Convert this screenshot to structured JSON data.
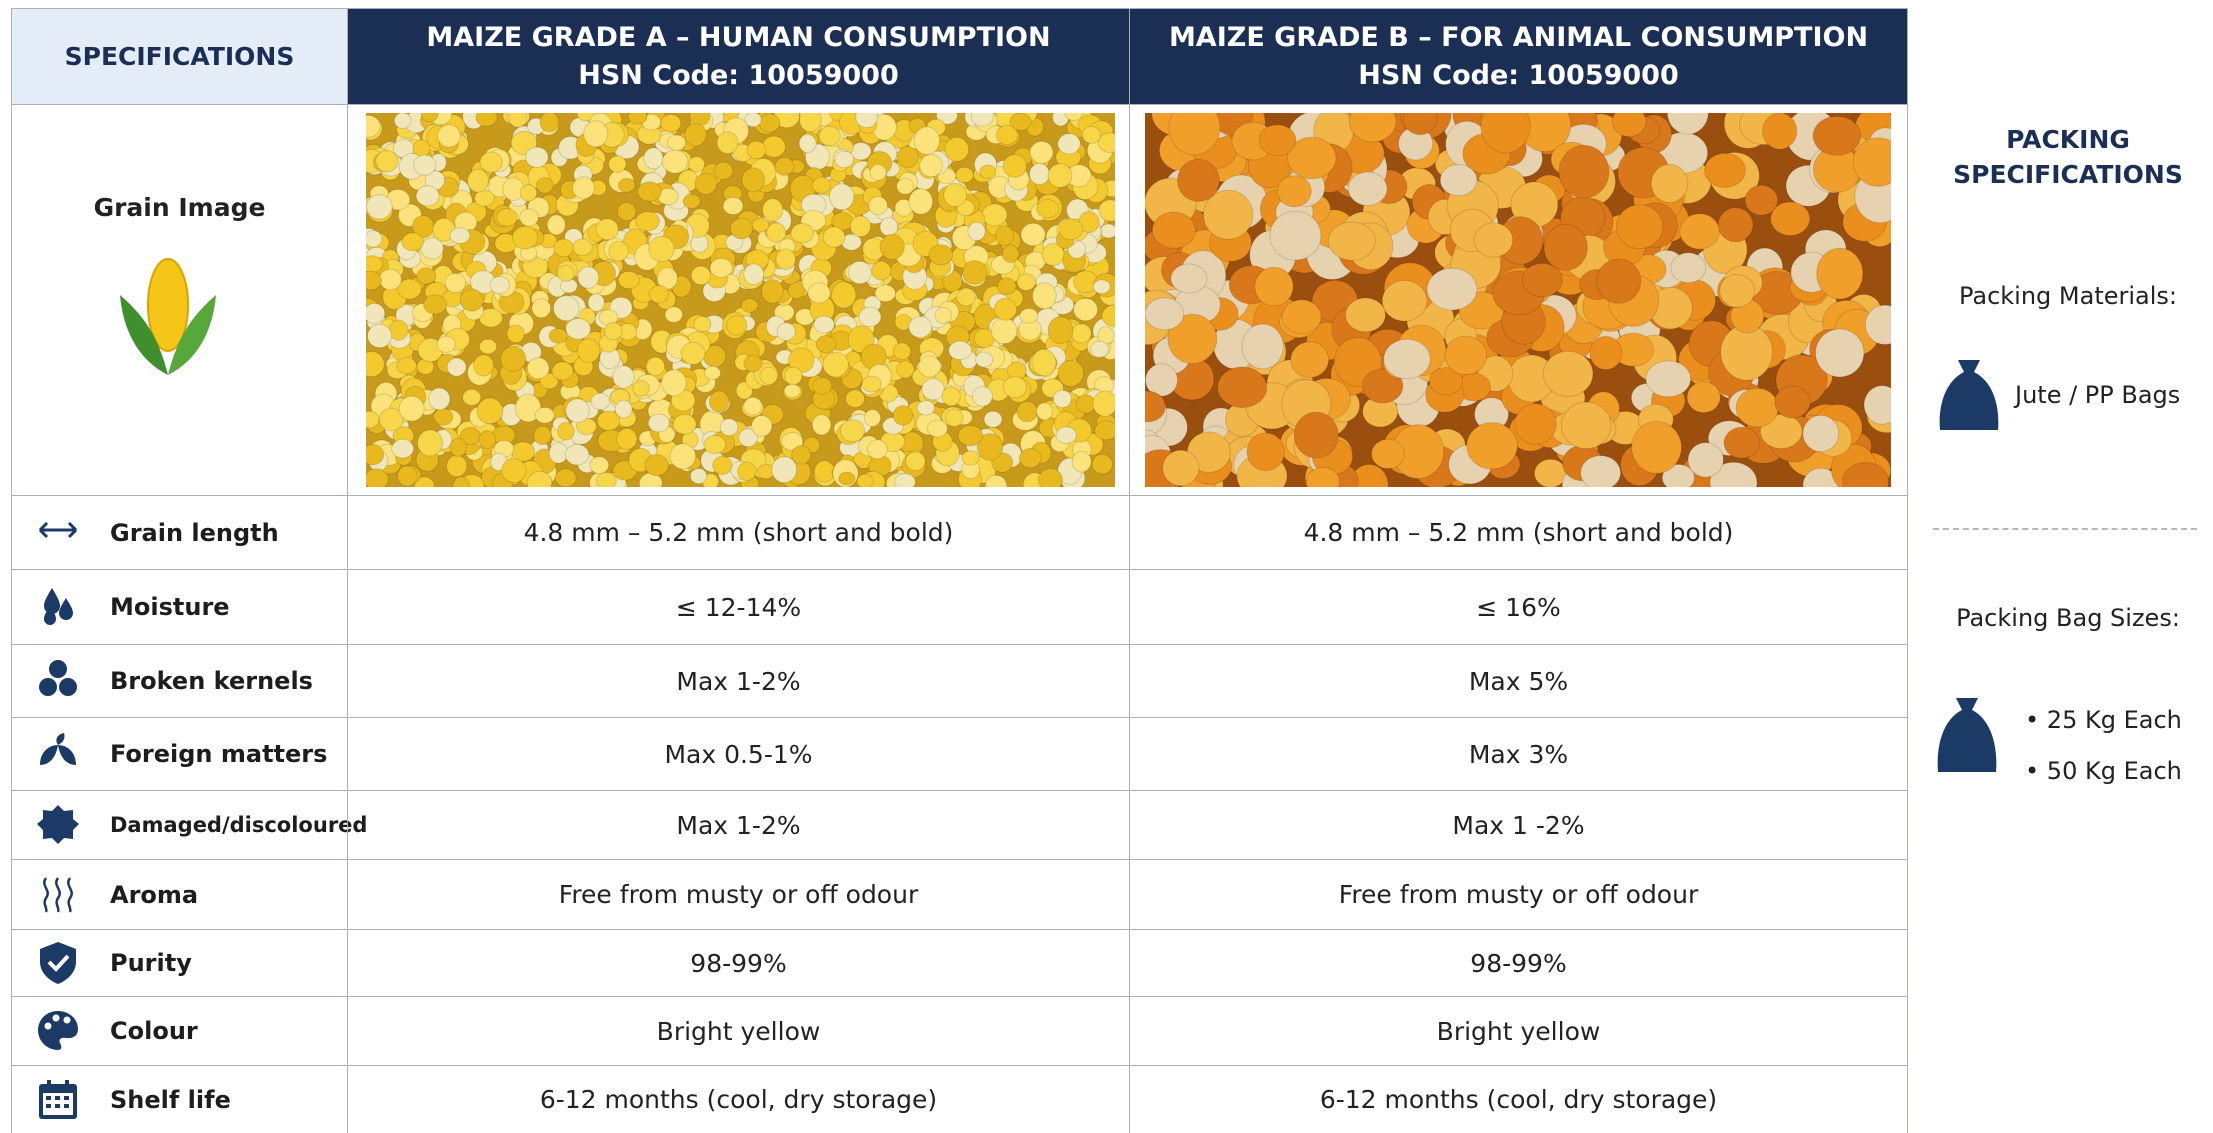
{
  "header": {
    "spec_label": "SPECIFICATIONS",
    "columns": [
      {
        "title": "MAIZE GRADE A – HUMAN CONSUMPTION",
        "hsn": "HSN Code: 10059000"
      },
      {
        "title": "MAIZE GRADE B – FOR ANIMAL CONSUMPTION",
        "hsn": "HSN Code: 10059000"
      }
    ]
  },
  "image_row_label": "Grain Image",
  "rows": [
    {
      "label": "Grain length",
      "values": [
        "4.8 mm – 5.2 mm (short and bold)",
        "4.8 mm – 5.2 mm (short and bold)"
      ]
    },
    {
      "label": "Moisture",
      "values": [
        "≤ 12-14%",
        "≤ 16%"
      ]
    },
    {
      "label": "Broken kernels",
      "values": [
        "Max 1-2%",
        "Max 5%"
      ]
    },
    {
      "label": "Foreign matters",
      "values": [
        "Max 0.5-1%",
        "Max 3%"
      ]
    },
    {
      "label": "Damaged/discoloured",
      "values": [
        "Max 1-2%",
        "Max 1 -2%"
      ]
    },
    {
      "label": "Aroma",
      "values": [
        "Free from musty or off odour",
        "Free from musty or off odour"
      ]
    },
    {
      "label": "Purity",
      "values": [
        "98-99%",
        "98-99%"
      ]
    },
    {
      "label": "Colour",
      "values": [
        "Bright yellow",
        "Bright yellow"
      ]
    },
    {
      "label": "Shelf life",
      "values": [
        "6-12 months (cool, dry storage)",
        "6-12 months (cool, dry storage)"
      ]
    }
  ],
  "packing": {
    "title": "PACKING SPECIFICATIONS",
    "materials_label": "Packing Materials:",
    "materials": "Jute / PP Bags",
    "sizes_label": "Packing Bag Sizes:",
    "sizes": [
      "25 Kg Each",
      "50 Kg Each"
    ]
  }
}
